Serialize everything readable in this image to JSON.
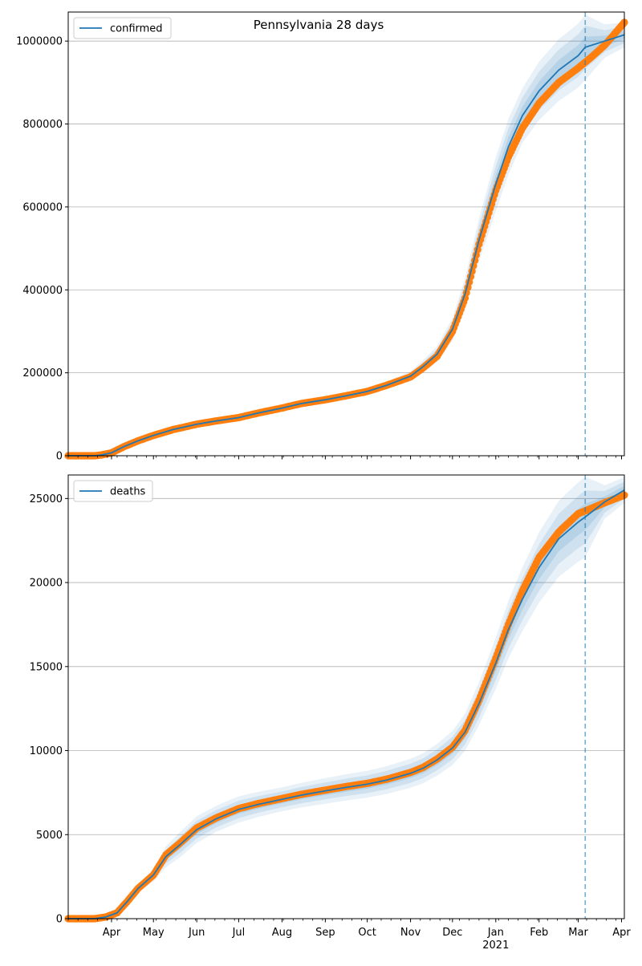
{
  "title": "Pennsylvania 28 days",
  "colors": {
    "model": "#1f77b4",
    "observed": "#ff7f0e",
    "grid": "#b0b0b0",
    "vline": "#1f77b4"
  },
  "x_month_labels": [
    "Apr",
    "May",
    "Jun",
    "Jul",
    "Aug",
    "Sep",
    "Oct",
    "Nov",
    "Dec",
    "Jan",
    "Feb",
    "Mar",
    "Apr"
  ],
  "x_year_label": "2021",
  "chart_data": [
    {
      "type": "line",
      "legend": "confirmed",
      "legend_position": "top-left",
      "grid": "y",
      "x_range": [
        "2020-03-01",
        "2021-04-03"
      ],
      "forecast_start": "2021-03-06",
      "ylim": [
        0,
        1070000
      ],
      "yticks": [
        0,
        200000,
        400000,
        600000,
        800000,
        1000000
      ],
      "ytick_labels": [
        "0",
        "200000",
        "400000",
        "600000",
        "800000",
        "1000000"
      ],
      "observed": {
        "x": [
          "2020-03-01",
          "2020-03-20",
          "2020-03-25",
          "2020-04-01",
          "2020-04-10",
          "2020-04-20",
          "2020-05-01",
          "2020-05-15",
          "2020-06-01",
          "2020-06-15",
          "2020-07-01",
          "2020-07-15",
          "2020-08-01",
          "2020-08-15",
          "2020-09-01",
          "2020-09-15",
          "2020-10-01",
          "2020-10-15",
          "2020-11-01",
          "2020-11-10",
          "2020-11-20",
          "2020-12-01",
          "2020-12-10",
          "2020-12-20",
          "2021-01-01",
          "2021-01-10",
          "2021-01-20",
          "2021-02-01",
          "2021-02-15",
          "2021-03-01",
          "2021-03-10",
          "2021-03-20",
          "2021-04-03"
        ],
        "y": [
          0,
          0,
          2000,
          7000,
          22000,
          36000,
          49000,
          63000,
          76000,
          84000,
          92000,
          103000,
          115000,
          126000,
          135000,
          144000,
          155000,
          170000,
          190000,
          212000,
          240000,
          300000,
          380000,
          510000,
          640000,
          720000,
          790000,
          850000,
          900000,
          935000,
          960000,
          990000,
          1045000
        ]
      },
      "model": {
        "x": [
          "2020-03-01",
          "2020-03-20",
          "2020-03-25",
          "2020-04-01",
          "2020-04-10",
          "2020-04-20",
          "2020-05-01",
          "2020-05-15",
          "2020-06-01",
          "2020-06-15",
          "2020-07-01",
          "2020-07-15",
          "2020-08-01",
          "2020-08-15",
          "2020-09-01",
          "2020-09-15",
          "2020-10-01",
          "2020-10-15",
          "2020-11-01",
          "2020-11-10",
          "2020-11-20",
          "2020-12-01",
          "2020-12-10",
          "2020-12-20",
          "2021-01-01",
          "2021-01-10",
          "2021-01-20",
          "2021-02-01",
          "2021-02-15",
          "2021-03-01",
          "2021-03-06",
          "2021-03-20",
          "2021-04-03"
        ],
        "y": [
          0,
          0,
          2000,
          7000,
          22000,
          36000,
          49000,
          63000,
          76000,
          84000,
          92000,
          103000,
          115000,
          126000,
          135000,
          144000,
          155000,
          170000,
          192000,
          215000,
          245000,
          305000,
          390000,
          520000,
          655000,
          745000,
          820000,
          880000,
          930000,
          965000,
          985000,
          1000000,
          1015000
        ],
        "band_outer": [
          0,
          0,
          0,
          0,
          0,
          0.02,
          0.04,
          0.05,
          0.05,
          0.05,
          0.05,
          0.05,
          0.05,
          0.05,
          0.05,
          0.05,
          0.05,
          0.05,
          0.06,
          0.07,
          0.08,
          0.09,
          0.1,
          0.1,
          0.1,
          0.09,
          0.08,
          0.08,
          0.08,
          0.08,
          0.08,
          0.04,
          0.03
        ],
        "band_mid": [
          0,
          0,
          0,
          0,
          0,
          0.013,
          0.026,
          0.033,
          0.033,
          0.033,
          0.033,
          0.033,
          0.033,
          0.033,
          0.033,
          0.033,
          0.033,
          0.033,
          0.04,
          0.047,
          0.053,
          0.06,
          0.066,
          0.066,
          0.066,
          0.06,
          0.053,
          0.053,
          0.053,
          0.053,
          0.053,
          0.026,
          0.02
        ],
        "band_inner": [
          0,
          0,
          0,
          0,
          0,
          0.006,
          0.013,
          0.016,
          0.016,
          0.016,
          0.016,
          0.016,
          0.016,
          0.016,
          0.016,
          0.016,
          0.016,
          0.016,
          0.02,
          0.023,
          0.026,
          0.03,
          0.033,
          0.033,
          0.033,
          0.03,
          0.026,
          0.026,
          0.026,
          0.026,
          0.026,
          0.013,
          0.01
        ]
      }
    },
    {
      "type": "line",
      "legend": "deaths",
      "legend_position": "top-left",
      "grid": "y",
      "x_range": [
        "2020-03-01",
        "2021-04-03"
      ],
      "forecast_start": "2021-03-06",
      "ylim": [
        0,
        26400
      ],
      "yticks": [
        0,
        5000,
        10000,
        15000,
        20000,
        25000
      ],
      "ytick_labels": [
        "0",
        "5000",
        "10000",
        "15000",
        "20000",
        "25000"
      ],
      "observed": {
        "x": [
          "2020-03-01",
          "2020-03-20",
          "2020-03-28",
          "2020-04-05",
          "2020-04-12",
          "2020-04-20",
          "2020-05-01",
          "2020-05-10",
          "2020-05-20",
          "2020-06-01",
          "2020-06-15",
          "2020-07-01",
          "2020-07-15",
          "2020-08-01",
          "2020-08-15",
          "2020-09-01",
          "2020-09-15",
          "2020-10-01",
          "2020-10-15",
          "2020-11-01",
          "2020-11-10",
          "2020-11-20",
          "2020-12-01",
          "2020-12-10",
          "2020-12-20",
          "2021-01-01",
          "2021-01-10",
          "2021-01-20",
          "2021-02-01",
          "2021-02-15",
          "2021-03-01",
          "2021-03-10",
          "2021-03-20",
          "2021-04-03"
        ],
        "y": [
          0,
          0,
          100,
          350,
          1000,
          1800,
          2600,
          3800,
          4500,
          5400,
          6000,
          6550,
          6850,
          7150,
          7400,
          7650,
          7850,
          8050,
          8300,
          8700,
          9000,
          9500,
          10200,
          11200,
          13000,
          15500,
          17500,
          19500,
          21500,
          23000,
          24100,
          24400,
          24750,
          25200
        ]
      },
      "model": {
        "x": [
          "2020-03-01",
          "2020-03-20",
          "2020-03-28",
          "2020-04-05",
          "2020-04-12",
          "2020-04-20",
          "2020-05-01",
          "2020-05-10",
          "2020-05-20",
          "2020-06-01",
          "2020-06-15",
          "2020-07-01",
          "2020-07-15",
          "2020-08-01",
          "2020-08-15",
          "2020-09-01",
          "2020-09-15",
          "2020-10-01",
          "2020-10-15",
          "2020-11-01",
          "2020-11-10",
          "2020-11-20",
          "2020-12-01",
          "2020-12-10",
          "2020-12-20",
          "2021-01-01",
          "2021-01-10",
          "2021-01-20",
          "2021-02-01",
          "2021-02-15",
          "2021-03-01",
          "2021-03-06",
          "2021-03-20",
          "2021-04-03"
        ],
        "y": [
          0,
          0,
          100,
          350,
          1000,
          1800,
          2600,
          3700,
          4400,
          5300,
          5950,
          6500,
          6800,
          7100,
          7350,
          7600,
          7800,
          8000,
          8250,
          8650,
          8950,
          9450,
          10150,
          11100,
          12800,
          15200,
          17200,
          19000,
          20900,
          22600,
          23600,
          23900,
          24800,
          25500
        ],
        "band_outer": [
          0,
          0,
          0,
          0.05,
          0.08,
          0.1,
          0.15,
          0.17,
          0.17,
          0.15,
          0.13,
          0.12,
          0.11,
          0.1,
          0.1,
          0.1,
          0.1,
          0.1,
          0.1,
          0.1,
          0.1,
          0.1,
          0.1,
          0.1,
          0.1,
          0.1,
          0.1,
          0.1,
          0.1,
          0.1,
          0.1,
          0.1,
          0.04,
          0.03
        ],
        "band_mid": [
          0,
          0,
          0,
          0.033,
          0.053,
          0.066,
          0.1,
          0.11,
          0.11,
          0.1,
          0.086,
          0.08,
          0.073,
          0.066,
          0.066,
          0.066,
          0.066,
          0.066,
          0.066,
          0.066,
          0.066,
          0.066,
          0.066,
          0.066,
          0.066,
          0.066,
          0.066,
          0.066,
          0.066,
          0.066,
          0.066,
          0.066,
          0.026,
          0.02
        ],
        "band_inner": [
          0,
          0,
          0,
          0.016,
          0.026,
          0.033,
          0.05,
          0.056,
          0.056,
          0.05,
          0.043,
          0.04,
          0.036,
          0.033,
          0.033,
          0.033,
          0.033,
          0.033,
          0.033,
          0.033,
          0.033,
          0.033,
          0.033,
          0.033,
          0.033,
          0.033,
          0.033,
          0.033,
          0.033,
          0.033,
          0.033,
          0.033,
          0.013,
          0.01
        ]
      }
    }
  ]
}
